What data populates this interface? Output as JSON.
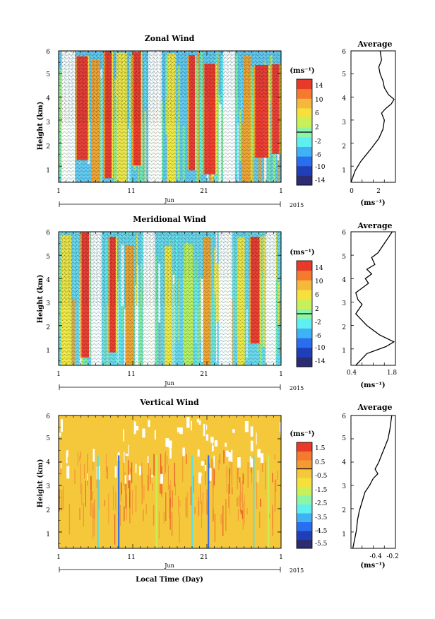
{
  "chart_data": [
    {
      "type": "heatmap",
      "title": "Zonal Wind",
      "ylabel": "Height (km)",
      "xlabel": "",
      "x_ticks": [
        "1",
        "11",
        "21",
        "1"
      ],
      "y_ticks": [
        "1",
        "2",
        "3",
        "4",
        "5",
        "6"
      ],
      "ylim": [
        0.3,
        6
      ],
      "month_label": "Jun",
      "year_label": "2015",
      "colorbar": {
        "unit": "(ms⁻¹)",
        "labels": [
          "14",
          "10",
          "6",
          "2",
          "-2",
          "-6",
          "-10",
          "-14"
        ],
        "range": [
          -16,
          16
        ],
        "colors": [
          "#2c2c72",
          "#1f3fb8",
          "#2a6ef0",
          "#3fb2f5",
          "#5ef0f0",
          "#8cf5a8",
          "#c8f05a",
          "#f5e03c",
          "#f5b83a",
          "#f57a30",
          "#e83a28"
        ]
      },
      "colors": {
        "background": "#62c9ef",
        "contour": "#000000",
        "red": "#f03228",
        "orange": "#f5a028",
        "yellow": "#f5e63c",
        "lime": "#b8f05a",
        "green": "#78f0a0",
        "cyan": "#5af0f0",
        "white": "#ffffff"
      },
      "stripes": [
        {
          "day": 2.3,
          "width": 1.8,
          "color": "#ffffff"
        },
        {
          "day": 4.2,
          "width": 1.5,
          "color": "#f03228"
        },
        {
          "day": 6.0,
          "width": 1.2,
          "color": "#f5a028"
        },
        {
          "day": 7.7,
          "width": 0.9,
          "color": "#f03228"
        },
        {
          "day": 9.5,
          "width": 1.4,
          "color": "#f5e63c"
        },
        {
          "day": 11.6,
          "width": 1.0,
          "color": "#f03228"
        },
        {
          "day": 14.0,
          "width": 1.8,
          "color": "#ffffff"
        },
        {
          "day": 16.2,
          "width": 1.2,
          "color": "#f5e63c"
        },
        {
          "day": 19.0,
          "width": 0.8,
          "color": "#f03228"
        },
        {
          "day": 21.4,
          "width": 1.5,
          "color": "#f03228"
        },
        {
          "day": 24.0,
          "width": 1.6,
          "color": "#ffffff"
        },
        {
          "day": 26.4,
          "width": 1.0,
          "color": "#f5a028"
        },
        {
          "day": 28.4,
          "width": 1.8,
          "color": "#f03228"
        },
        {
          "day": 30.3,
          "width": 1.0,
          "color": "#f03228"
        }
      ],
      "average_profile": {
        "title": "Average",
        "xlabel": "(ms⁻¹)",
        "x_ticks": [
          "0",
          "2"
        ],
        "xlim": [
          0,
          3.2
        ],
        "x": [
          0.0,
          0.3,
          0.7,
          1.1,
          1.5,
          2.0,
          2.3,
          2.4,
          2.2,
          2.5,
          2.7,
          2.9,
          3.0,
          3.1,
          2.7,
          2.4,
          2.3,
          2.1,
          2.0,
          2.2,
          2.1
        ],
        "height": [
          0.3,
          0.8,
          1.2,
          1.5,
          1.8,
          2.2,
          2.6,
          3.0,
          3.3,
          3.5,
          3.6,
          3.7,
          3.8,
          3.9,
          4.1,
          4.4,
          4.7,
          5.0,
          5.3,
          5.6,
          6.0
        ]
      }
    },
    {
      "type": "heatmap",
      "title": "Meridional Wind",
      "ylabel": "Height (km)",
      "xlabel": "",
      "x_ticks": [
        "1",
        "11",
        "21",
        "1"
      ],
      "y_ticks": [
        "1",
        "2",
        "3",
        "4",
        "5",
        "6"
      ],
      "ylim": [
        0.3,
        6
      ],
      "month_label": "Jun",
      "year_label": "2015",
      "colorbar": {
        "unit": "(ms⁻¹)",
        "labels": [
          "14",
          "10",
          "6",
          "2",
          "-2",
          "-6",
          "-10",
          "-14"
        ],
        "range": [
          -16,
          16
        ],
        "colors": [
          "#2c2c72",
          "#1f3fb8",
          "#2a6ef0",
          "#3fb2f5",
          "#5ef0f0",
          "#8cf5a8",
          "#c8f05a",
          "#f5e03c",
          "#f5b83a",
          "#f57a30",
          "#e83a28"
        ]
      },
      "colors": {
        "background": "#6ad8ec",
        "contour": "#000000",
        "red": "#f03228",
        "orange": "#f5a028",
        "yellow": "#f5e63c",
        "lime": "#b8f05a",
        "green": "#78f0a0",
        "cyan": "#5af0f0",
        "white": "#ffffff"
      },
      "stripes": [
        {
          "day": 2.0,
          "width": 1.4,
          "color": "#f5e63c"
        },
        {
          "day": 4.6,
          "width": 1.0,
          "color": "#f03228"
        },
        {
          "day": 6.1,
          "width": 1.4,
          "color": "#ffffff"
        },
        {
          "day": 8.3,
          "width": 0.8,
          "color": "#f03228"
        },
        {
          "day": 10.6,
          "width": 1.2,
          "color": "#f5a028"
        },
        {
          "day": 13.2,
          "width": 1.6,
          "color": "#ffffff"
        },
        {
          "day": 15.8,
          "width": 1.0,
          "color": "#f5e63c"
        },
        {
          "day": 18.5,
          "width": 1.2,
          "color": "#b8f05a"
        },
        {
          "day": 21.0,
          "width": 1.0,
          "color": "#f5a028"
        },
        {
          "day": 23.5,
          "width": 1.8,
          "color": "#ffffff"
        },
        {
          "day": 25.6,
          "width": 1.0,
          "color": "#f5e63c"
        },
        {
          "day": 27.5,
          "width": 1.2,
          "color": "#f03228"
        },
        {
          "day": 29.6,
          "width": 1.4,
          "color": "#ffffff"
        }
      ],
      "average_profile": {
        "title": "Average",
        "xlabel": "(ms⁻¹)",
        "x_ticks": [
          "0.4",
          "1.8"
        ],
        "xlim": [
          0.4,
          1.8
        ],
        "x": [
          0.55,
          0.9,
          1.5,
          1.75,
          1.3,
          0.9,
          0.55,
          0.75,
          0.62,
          0.55,
          0.75,
          0.95,
          0.85,
          1.05,
          0.9,
          1.15,
          1.05,
          1.25,
          1.4,
          1.55,
          1.7
        ],
        "height": [
          0.3,
          0.8,
          1.1,
          1.3,
          1.6,
          2.0,
          2.5,
          2.9,
          3.1,
          3.4,
          3.6,
          3.8,
          4.0,
          4.2,
          4.4,
          4.6,
          4.9,
          5.1,
          5.4,
          5.7,
          6.0
        ]
      }
    },
    {
      "type": "heatmap",
      "title": "Vertical Wind",
      "ylabel": "Height (km)",
      "xlabel": "Local Time (Day)",
      "x_ticks": [
        "1",
        "11",
        "21",
        "1"
      ],
      "y_ticks": [
        "1",
        "2",
        "3",
        "4",
        "5",
        "6"
      ],
      "ylim": [
        0.3,
        6
      ],
      "month_label": "Jun",
      "year_label": "2015",
      "colorbar": {
        "unit": "(ms⁻¹)",
        "labels": [
          "1.5",
          "0.5",
          "-0.5",
          "-1.5",
          "-2.5",
          "-3.5",
          "-4.5",
          "-5.5"
        ],
        "range": [
          -6,
          2
        ],
        "colors": [
          "#2c2c72",
          "#1f3fb8",
          "#2a6ef0",
          "#3fb2f5",
          "#5ef0f0",
          "#8cf5a8",
          "#c8f05a",
          "#f5e03c",
          "#f5c83a",
          "#f59a32",
          "#f57a30",
          "#e83a28"
        ]
      },
      "colors": {
        "background": "#f5c83c",
        "orange": "#f08a32",
        "red": "#e84a28",
        "blue": "#2a6ef0",
        "cyan": "#5ae0e6",
        "lime": "#c8f05a",
        "white": "#ffffff"
      },
      "spikes": [
        {
          "day": 6.3,
          "color": "#5ae0e6"
        },
        {
          "day": 9.1,
          "color": "#2a6ef0"
        },
        {
          "day": 14.2,
          "color": "#c8f05a"
        },
        {
          "day": 19.0,
          "color": "#5ae0e6"
        },
        {
          "day": 21.2,
          "color": "#2a6ef0"
        },
        {
          "day": 27.3,
          "color": "#5ae0e6"
        },
        {
          "day": 29.3,
          "color": "#c8f05a"
        }
      ],
      "average_profile": {
        "title": "Average",
        "xlabel": "(ms⁻¹)",
        "x_ticks": [
          "-0.4",
          "-0.2"
        ],
        "xlim": [
          -0.62,
          -0.14
        ],
        "x": [
          -0.6,
          -0.58,
          -0.56,
          -0.55,
          -0.53,
          -0.5,
          -0.47,
          -0.42,
          -0.38,
          -0.33,
          -0.36,
          -0.32,
          -0.3,
          -0.28,
          -0.26,
          -0.24,
          -0.22,
          -0.21,
          -0.2,
          -0.19,
          -0.18
        ],
        "height": [
          0.3,
          0.7,
          1.1,
          1.5,
          1.9,
          2.3,
          2.7,
          3.0,
          3.3,
          3.5,
          3.7,
          4.0,
          4.2,
          4.4,
          4.6,
          4.8,
          5.0,
          5.2,
          5.4,
          5.7,
          6.0
        ]
      }
    }
  ]
}
